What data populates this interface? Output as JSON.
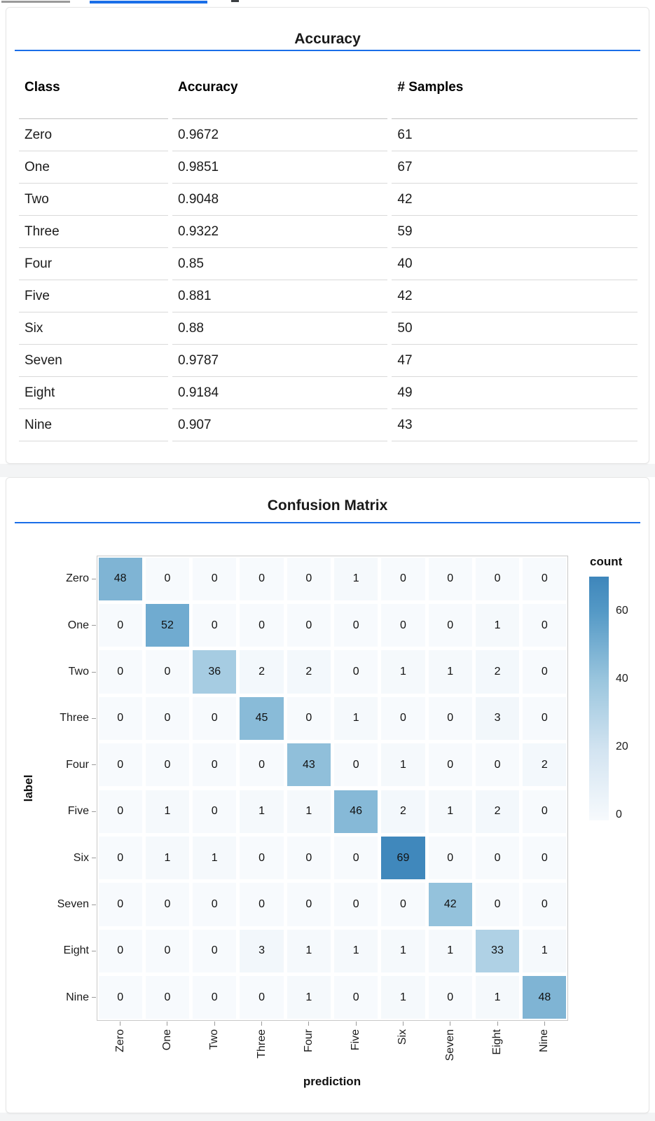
{
  "ui": {
    "accent_color": "#1a6ee8",
    "tab_indicators": [
      {
        "name": "inactive-tab-underline",
        "color": "#9a9a9a"
      },
      {
        "name": "active-tab-underline",
        "color": "#1a6ee8"
      },
      {
        "name": "tab-underline-fragment",
        "color": "#3c4043"
      }
    ]
  },
  "chart_data": [
    {
      "type": "table",
      "title": "Accuracy",
      "columns": [
        "Class",
        "Accuracy",
        "# Samples"
      ],
      "rows": [
        [
          "Zero",
          "0.9672",
          "61"
        ],
        [
          "One",
          "0.9851",
          "67"
        ],
        [
          "Two",
          "0.9048",
          "42"
        ],
        [
          "Three",
          "0.9322",
          "59"
        ],
        [
          "Four",
          "0.85",
          "40"
        ],
        [
          "Five",
          "0.881",
          "42"
        ],
        [
          "Six",
          "0.88",
          "50"
        ],
        [
          "Seven",
          "0.9787",
          "47"
        ],
        [
          "Eight",
          "0.9184",
          "49"
        ],
        [
          "Nine",
          "0.907",
          "43"
        ]
      ]
    },
    {
      "type": "heatmap",
      "title": "Confusion Matrix",
      "xlabel": "prediction",
      "ylabel": "label",
      "x_categories": [
        "Zero",
        "One",
        "Two",
        "Three",
        "Four",
        "Five",
        "Six",
        "Seven",
        "Eight",
        "Nine"
      ],
      "y_categories": [
        "Zero",
        "One",
        "Two",
        "Three",
        "Four",
        "Five",
        "Six",
        "Seven",
        "Eight",
        "Nine"
      ],
      "values": [
        [
          48,
          0,
          0,
          0,
          0,
          1,
          0,
          0,
          0,
          0
        ],
        [
          0,
          52,
          0,
          0,
          0,
          0,
          0,
          0,
          1,
          0
        ],
        [
          0,
          0,
          36,
          2,
          2,
          0,
          1,
          1,
          2,
          0
        ],
        [
          0,
          0,
          0,
          45,
          0,
          1,
          0,
          0,
          3,
          0
        ],
        [
          0,
          0,
          0,
          0,
          43,
          0,
          1,
          0,
          0,
          2
        ],
        [
          0,
          1,
          0,
          1,
          1,
          46,
          2,
          1,
          2,
          0
        ],
        [
          0,
          1,
          1,
          0,
          0,
          0,
          69,
          0,
          0,
          0
        ],
        [
          0,
          0,
          0,
          0,
          0,
          0,
          0,
          42,
          0,
          0
        ],
        [
          0,
          0,
          0,
          3,
          1,
          1,
          1,
          1,
          33,
          1
        ],
        [
          0,
          0,
          0,
          0,
          1,
          0,
          1,
          0,
          1,
          48
        ]
      ],
      "legend": {
        "title": "count",
        "ticks": [
          0,
          20,
          40,
          60
        ],
        "domain": [
          0,
          70
        ]
      },
      "color_scale_stops": [
        [
          0,
          "#f7fafd"
        ],
        [
          20,
          "#d3e4f1"
        ],
        [
          40,
          "#9bc6de"
        ],
        [
          60,
          "#5499c6"
        ],
        [
          70,
          "#3e86bb"
        ]
      ]
    }
  ]
}
